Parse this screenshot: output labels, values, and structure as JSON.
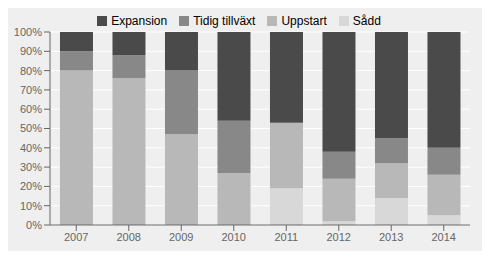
{
  "chart_data": {
    "type": "bar",
    "stacked": true,
    "grid": true,
    "legend": "top",
    "categories": [
      "2007",
      "2008",
      "2009",
      "2010",
      "2011",
      "2012",
      "2013",
      "2014"
    ],
    "series": [
      {
        "name": "Sådd",
        "color": "#d8d8d8",
        "values": [
          0,
          0,
          0,
          0,
          19,
          2,
          14,
          5
        ]
      },
      {
        "name": "Uppstart",
        "color": "#b8b8b8",
        "values": [
          80,
          76,
          47,
          27,
          34,
          22,
          18,
          21
        ]
      },
      {
        "name": "Tidig tillväxt",
        "color": "#888888",
        "values": [
          10,
          12,
          33,
          27,
          0,
          14,
          13,
          14
        ]
      },
      {
        "name": "Expansion",
        "color": "#4a4a4a",
        "values": [
          10,
          12,
          20,
          46,
          47,
          62,
          55,
          60
        ]
      }
    ],
    "ylim": [
      0,
      100
    ],
    "yticks": [
      {
        "value": 0,
        "label": "0%"
      },
      {
        "value": 10,
        "label": "10%"
      },
      {
        "value": 20,
        "label": "20%"
      },
      {
        "value": 30,
        "label": "30%"
      },
      {
        "value": 40,
        "label": "40%"
      },
      {
        "value": 50,
        "label": "50%"
      },
      {
        "value": 60,
        "label": "60%"
      },
      {
        "value": 70,
        "label": "70%"
      },
      {
        "value": 80,
        "label": "80%"
      },
      {
        "value": 90,
        "label": "90%"
      },
      {
        "value": 100,
        "label": "100%"
      }
    ]
  }
}
